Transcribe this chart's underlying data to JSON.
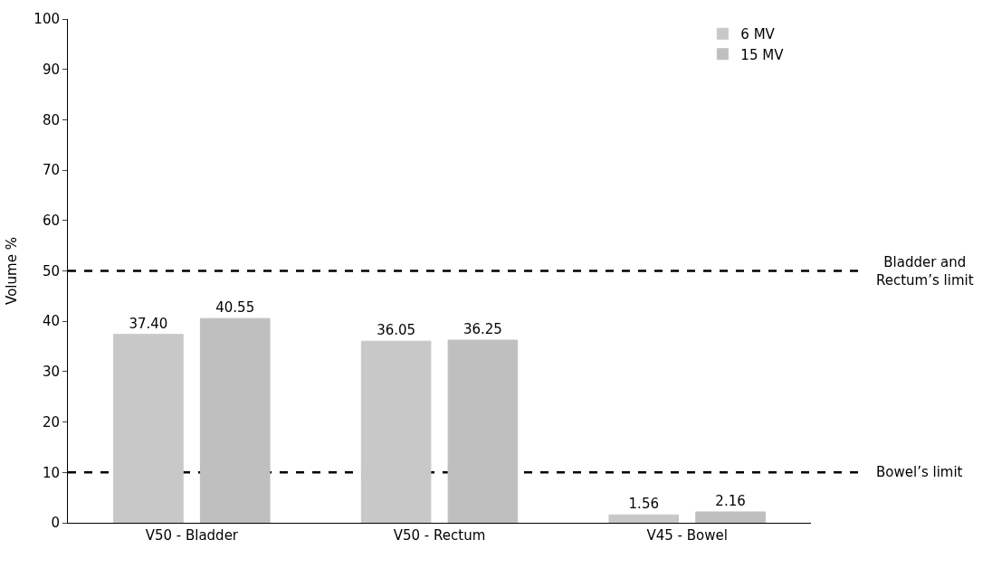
{
  "chart_data": {
    "type": "bar",
    "ylabel": "Volume %",
    "categories": [
      "V50 - Bladder",
      "V50 - Rectum",
      "V45 - Bowel"
    ],
    "series": [
      {
        "name": "6 MV",
        "color": "#c8c8c8",
        "values": [
          37.4,
          36.05,
          1.56
        ],
        "value_labels": [
          "37.40",
          "36.05",
          "1.56"
        ]
      },
      {
        "name": "15 MV",
        "color": "#bfbfbf",
        "values": [
          40.55,
          36.25,
          2.16
        ],
        "value_labels": [
          "40.55",
          "36.25",
          "2.16"
        ]
      }
    ],
    "ylim": [
      0,
      100
    ],
    "yticks": [
      0,
      10,
      20,
      30,
      40,
      50,
      60,
      70,
      80,
      90,
      100
    ],
    "ref_lines": [
      {
        "axis": "y",
        "value": 50,
        "label": "Bladder and Rectum’s limit",
        "color": "#000000",
        "line_style": "dashed"
      },
      {
        "axis": "y",
        "value": 10,
        "label": "Bowel’s limit",
        "color": "#000000",
        "line_style": "dashed"
      }
    ],
    "grid": false,
    "legend": "top right"
  }
}
